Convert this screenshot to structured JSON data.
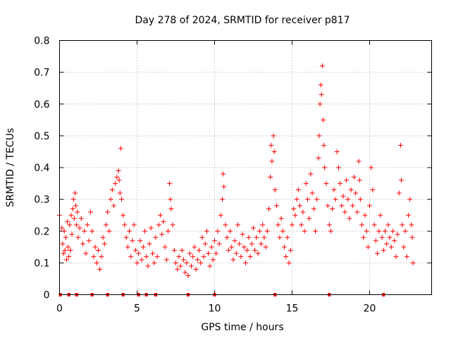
{
  "chart_data": {
    "type": "scatter",
    "title": "Day 278 of 2024, SRMTID for receiver p817",
    "xlabel": "GPS time / hours",
    "ylabel": "SRMTID / TECUs",
    "xlim": [
      0,
      24
    ],
    "ylim": [
      0,
      0.8
    ],
    "x_ticks": [
      "0",
      "5",
      "10",
      "15",
      "20"
    ],
    "y_ticks": [
      "0",
      "0.1",
      "0.2",
      "0.3",
      "0.4",
      "0.5",
      "0.6",
      "0.7",
      "0.8"
    ],
    "grid": true,
    "marker": "+",
    "color": "#ff0000",
    "baseline_dots_x": [
      0.05,
      0.6,
      1.1,
      2.1,
      3.1,
      4.1,
      5.1,
      5.6,
      6.2,
      8.3,
      10.0,
      13.9,
      17.4,
      20.9
    ],
    "series": [
      {
        "name": "SRMTID",
        "points": [
          [
            0.0,
            0.25
          ],
          [
            0.15,
            0.21
          ],
          [
            0.2,
            0.16
          ],
          [
            0.25,
            0.13
          ],
          [
            0.3,
            0.2
          ],
          [
            0.35,
            0.14
          ],
          [
            0.4,
            0.18
          ],
          [
            0.45,
            0.11
          ],
          [
            0.5,
            0.23
          ],
          [
            0.55,
            0.15
          ],
          [
            0.6,
            0.12
          ],
          [
            0.65,
            0.22
          ],
          [
            0.7,
            0.14
          ],
          [
            0.75,
            0.25
          ],
          [
            0.8,
            0.19
          ],
          [
            0.85,
            0.27
          ],
          [
            0.9,
            0.3
          ],
          [
            0.95,
            0.24
          ],
          [
            1.0,
            0.32
          ],
          [
            1.05,
            0.28
          ],
          [
            1.1,
            0.22
          ],
          [
            1.15,
            0.26
          ],
          [
            1.2,
            0.18
          ],
          [
            1.3,
            0.21
          ],
          [
            1.4,
            0.24
          ],
          [
            1.5,
            0.16
          ],
          [
            1.6,
            0.2
          ],
          [
            1.7,
            0.13
          ],
          [
            1.8,
            0.22
          ],
          [
            1.9,
            0.17
          ],
          [
            2.0,
            0.26
          ],
          [
            2.1,
            0.2
          ],
          [
            2.2,
            0.12
          ],
          [
            2.3,
            0.15
          ],
          [
            2.4,
            0.1
          ],
          [
            2.5,
            0.14
          ],
          [
            2.6,
            0.08
          ],
          [
            2.7,
            0.12
          ],
          [
            2.8,
            0.18
          ],
          [
            2.9,
            0.16
          ],
          [
            3.0,
            0.22
          ],
          [
            3.1,
            0.26
          ],
          [
            3.2,
            0.2
          ],
          [
            3.3,
            0.3
          ],
          [
            3.4,
            0.33
          ],
          [
            3.5,
            0.28
          ],
          [
            3.6,
            0.35
          ],
          [
            3.7,
            0.37
          ],
          [
            3.8,
            0.39
          ],
          [
            3.85,
            0.36
          ],
          [
            3.9,
            0.32
          ],
          [
            3.95,
            0.46
          ],
          [
            4.0,
            0.3
          ],
          [
            4.1,
            0.25
          ],
          [
            4.2,
            0.22
          ],
          [
            4.3,
            0.18
          ],
          [
            4.4,
            0.15
          ],
          [
            4.5,
            0.2
          ],
          [
            4.6,
            0.12
          ],
          [
            4.7,
            0.17
          ],
          [
            4.8,
            0.22
          ],
          [
            4.9,
            0.14
          ],
          [
            5.0,
            0.1
          ],
          [
            5.1,
            0.13
          ],
          [
            5.2,
            0.17
          ],
          [
            5.3,
            0.11
          ],
          [
            5.4,
            0.15
          ],
          [
            5.5,
            0.2
          ],
          [
            5.6,
            0.12
          ],
          [
            5.7,
            0.09
          ],
          [
            5.8,
            0.16
          ],
          [
            5.9,
            0.21
          ],
          [
            6.0,
            0.13
          ],
          [
            6.1,
            0.1
          ],
          [
            6.2,
            0.18
          ],
          [
            6.3,
            0.12
          ],
          [
            6.4,
            0.22
          ],
          [
            6.5,
            0.25
          ],
          [
            6.6,
            0.19
          ],
          [
            6.7,
            0.23
          ],
          [
            6.8,
            0.15
          ],
          [
            6.9,
            0.11
          ],
          [
            7.0,
            0.2
          ],
          [
            7.1,
            0.35
          ],
          [
            7.15,
            0.3
          ],
          [
            7.2,
            0.27
          ],
          [
            7.3,
            0.22
          ],
          [
            7.4,
            0.14
          ],
          [
            7.5,
            0.1
          ],
          [
            7.6,
            0.08
          ],
          [
            7.7,
            0.12
          ],
          [
            7.8,
            0.09
          ],
          [
            7.9,
            0.14
          ],
          [
            8.0,
            0.11
          ],
          [
            8.1,
            0.07
          ],
          [
            8.2,
            0.1
          ],
          [
            8.3,
            0.06
          ],
          [
            8.4,
            0.13
          ],
          [
            8.5,
            0.09
          ],
          [
            8.6,
            0.12
          ],
          [
            8.7,
            0.15
          ],
          [
            8.8,
            0.08
          ],
          [
            8.9,
            0.11
          ],
          [
            9.0,
            0.14
          ],
          [
            9.1,
            0.1
          ],
          [
            9.2,
            0.18
          ],
          [
            9.3,
            0.12
          ],
          [
            9.4,
            0.16
          ],
          [
            9.5,
            0.2
          ],
          [
            9.6,
            0.13
          ],
          [
            9.7,
            0.09
          ],
          [
            9.8,
            0.15
          ],
          [
            9.9,
            0.11
          ],
          [
            10.0,
            0.17
          ],
          [
            10.1,
            0.13
          ],
          [
            10.2,
            0.2
          ],
          [
            10.3,
            0.16
          ],
          [
            10.4,
            0.25
          ],
          [
            10.5,
            0.3
          ],
          [
            10.55,
            0.38
          ],
          [
            10.6,
            0.34
          ],
          [
            10.7,
            0.22
          ],
          [
            10.8,
            0.18
          ],
          [
            10.9,
            0.14
          ],
          [
            11.0,
            0.2
          ],
          [
            11.1,
            0.15
          ],
          [
            11.2,
            0.11
          ],
          [
            11.3,
            0.17
          ],
          [
            11.4,
            0.13
          ],
          [
            11.5,
            0.22
          ],
          [
            11.6,
            0.16
          ],
          [
            11.7,
            0.12
          ],
          [
            11.8,
            0.19
          ],
          [
            11.9,
            0.15
          ],
          [
            12.0,
            0.1
          ],
          [
            12.1,
            0.14
          ],
          [
            12.2,
            0.18
          ],
          [
            12.3,
            0.12
          ],
          [
            12.4,
            0.16
          ],
          [
            12.5,
            0.21
          ],
          [
            12.6,
            0.14
          ],
          [
            12.7,
            0.18
          ],
          [
            12.8,
            0.13
          ],
          [
            12.9,
            0.2
          ],
          [
            13.0,
            0.16
          ],
          [
            13.1,
            0.22
          ],
          [
            13.2,
            0.18
          ],
          [
            13.3,
            0.15
          ],
          [
            13.4,
            0.2
          ],
          [
            13.5,
            0.27
          ],
          [
            13.6,
            0.37
          ],
          [
            13.65,
            0.47
          ],
          [
            13.7,
            0.42
          ],
          [
            13.8,
            0.5
          ],
          [
            13.85,
            0.45
          ],
          [
            13.9,
            0.33
          ],
          [
            14.0,
            0.28
          ],
          [
            14.1,
            0.22
          ],
          [
            14.2,
            0.18
          ],
          [
            14.3,
            0.24
          ],
          [
            14.4,
            0.2
          ],
          [
            14.5,
            0.15
          ],
          [
            14.6,
            0.12
          ],
          [
            14.7,
            0.18
          ],
          [
            14.8,
            0.1
          ],
          [
            14.9,
            0.14
          ],
          [
            15.0,
            0.22
          ],
          [
            15.1,
            0.27
          ],
          [
            15.2,
            0.25
          ],
          [
            15.3,
            0.3
          ],
          [
            15.4,
            0.33
          ],
          [
            15.5,
            0.28
          ],
          [
            15.6,
            0.22
          ],
          [
            15.7,
            0.26
          ],
          [
            15.8,
            0.2
          ],
          [
            15.9,
            0.35
          ],
          [
            16.0,
            0.3
          ],
          [
            16.1,
            0.24
          ],
          [
            16.2,
            0.38
          ],
          [
            16.3,
            0.32
          ],
          [
            16.4,
            0.27
          ],
          [
            16.5,
            0.2
          ],
          [
            16.6,
            0.3
          ],
          [
            16.7,
            0.43
          ],
          [
            16.75,
            0.5
          ],
          [
            16.8,
            0.6
          ],
          [
            16.85,
            0.66
          ],
          [
            16.9,
            0.63
          ],
          [
            16.95,
            0.72
          ],
          [
            17.0,
            0.55
          ],
          [
            17.05,
            0.47
          ],
          [
            17.1,
            0.4
          ],
          [
            17.2,
            0.35
          ],
          [
            17.3,
            0.28
          ],
          [
            17.4,
            0.22
          ],
          [
            17.5,
            0.2
          ],
          [
            17.6,
            0.27
          ],
          [
            17.7,
            0.33
          ],
          [
            17.8,
            0.3
          ],
          [
            17.9,
            0.45
          ],
          [
            18.0,
            0.4
          ],
          [
            18.1,
            0.35
          ],
          [
            18.2,
            0.28
          ],
          [
            18.3,
            0.31
          ],
          [
            18.4,
            0.26
          ],
          [
            18.5,
            0.36
          ],
          [
            18.6,
            0.3
          ],
          [
            18.7,
            0.24
          ],
          [
            18.8,
            0.33
          ],
          [
            18.9,
            0.28
          ],
          [
            19.0,
            0.37
          ],
          [
            19.1,
            0.32
          ],
          [
            19.2,
            0.26
          ],
          [
            19.3,
            0.42
          ],
          [
            19.35,
            0.36
          ],
          [
            19.4,
            0.3
          ],
          [
            19.5,
            0.22
          ],
          [
            19.6,
            0.18
          ],
          [
            19.7,
            0.25
          ],
          [
            19.8,
            0.2
          ],
          [
            19.9,
            0.15
          ],
          [
            20.0,
            0.28
          ],
          [
            20.1,
            0.4
          ],
          [
            20.2,
            0.33
          ],
          [
            20.3,
            0.22
          ],
          [
            20.4,
            0.17
          ],
          [
            20.5,
            0.13
          ],
          [
            20.6,
            0.2
          ],
          [
            20.7,
            0.25
          ],
          [
            20.8,
            0.18
          ],
          [
            20.9,
            0.14
          ],
          [
            21.0,
            0.2
          ],
          [
            21.1,
            0.16
          ],
          [
            21.2,
            0.22
          ],
          [
            21.3,
            0.18
          ],
          [
            21.4,
            0.15
          ],
          [
            21.5,
            0.2
          ],
          [
            21.6,
            0.17
          ],
          [
            21.7,
            0.12
          ],
          [
            21.8,
            0.19
          ],
          [
            21.9,
            0.32
          ],
          [
            22.0,
            0.47
          ],
          [
            22.05,
            0.36
          ],
          [
            22.1,
            0.22
          ],
          [
            22.2,
            0.15
          ],
          [
            22.3,
            0.2
          ],
          [
            22.4,
            0.12
          ],
          [
            22.5,
            0.25
          ],
          [
            22.6,
            0.3
          ],
          [
            22.7,
            0.22
          ],
          [
            22.75,
            0.18
          ],
          [
            22.8,
            0.1
          ]
        ]
      }
    ]
  }
}
